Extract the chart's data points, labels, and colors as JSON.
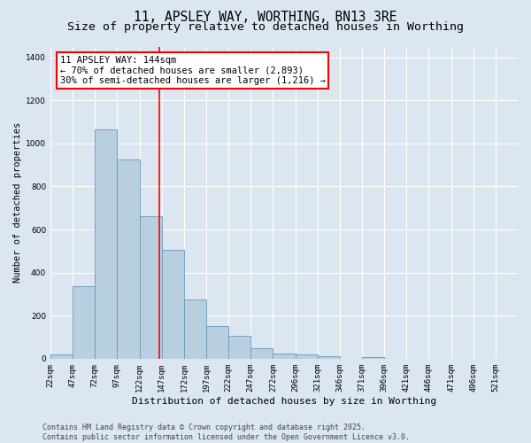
{
  "title": "11, APSLEY WAY, WORTHING, BN13 3RE",
  "subtitle": "Size of property relative to detached houses in Worthing",
  "xlabel": "Distribution of detached houses by size in Worthing",
  "ylabel": "Number of detached properties",
  "categories": [
    "22sqm",
    "47sqm",
    "72sqm",
    "97sqm",
    "122sqm",
    "147sqm",
    "172sqm",
    "197sqm",
    "222sqm",
    "247sqm",
    "272sqm",
    "296sqm",
    "321sqm",
    "346sqm",
    "371sqm",
    "396sqm",
    "421sqm",
    "446sqm",
    "471sqm",
    "496sqm",
    "521sqm"
  ],
  "values": [
    20,
    335,
    1065,
    925,
    660,
    505,
    275,
    150,
    105,
    48,
    22,
    18,
    12,
    0,
    8,
    0,
    0,
    0,
    0,
    0,
    0
  ],
  "bar_color": "#b8cfe0",
  "bar_edge_color": "#6699bb",
  "background_color": "#dce6f0",
  "grid_color": "#ffffff",
  "annotation_line1": "11 APSLEY WAY: 144sqm",
  "annotation_line2": "← 70% of detached houses are smaller (2,893)",
  "annotation_line3": "30% of semi-detached houses are larger (1,216) →",
  "red_line_index": 4.88,
  "ylim": [
    0,
    1450
  ],
  "yticks": [
    0,
    200,
    400,
    600,
    800,
    1000,
    1200,
    1400
  ],
  "footer_text": "Contains HM Land Registry data © Crown copyright and database right 2025.\nContains public sector information licensed under the Open Government Licence v3.0.",
  "title_fontsize": 10.5,
  "subtitle_fontsize": 9.5,
  "ylabel_fontsize": 7.5,
  "xlabel_fontsize": 8,
  "tick_fontsize": 6.5,
  "annotation_fontsize": 7.5,
  "footer_fontsize": 6
}
